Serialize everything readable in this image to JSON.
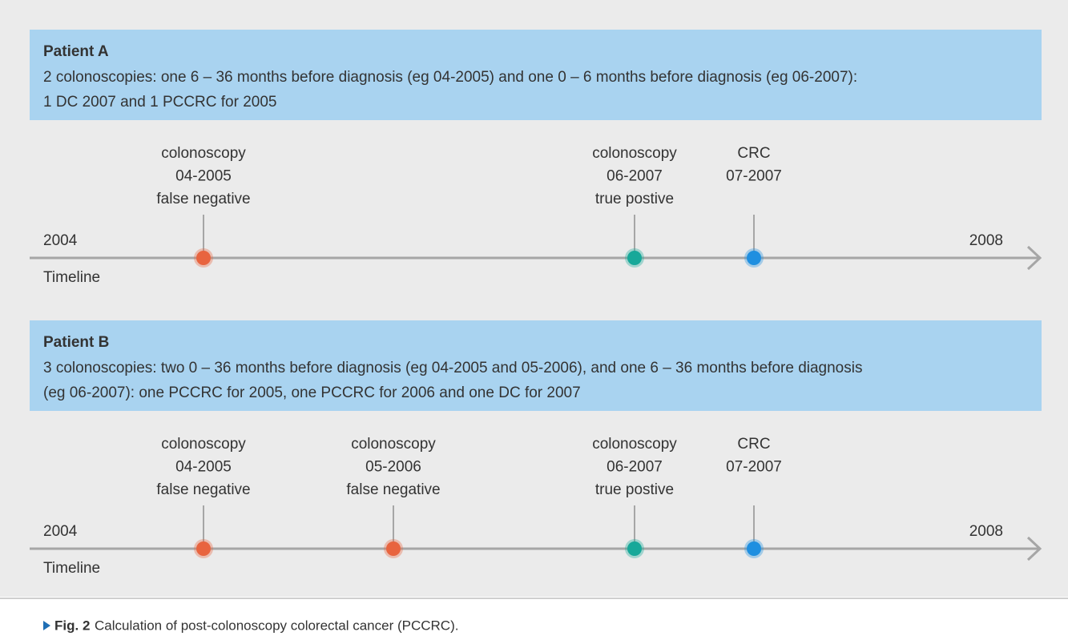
{
  "panels": [
    {
      "title": "Patient A",
      "description": [
        "2 colonoscopies: one 6 – 36 months before diagnosis (eg 04-2005) and one 0 – 6 months before diagnosis (eg 06-2007):",
        "1 DC 2007 and 1 PCCRC for 2005"
      ],
      "timeline": {
        "start": "2004",
        "end": "2008",
        "label": "Timeline",
        "events": [
          {
            "lines": [
              "colonoscopy",
              "04-2005",
              "false negative"
            ],
            "color": "#e8643f"
          },
          {
            "lines": [
              "colonoscopy",
              "06-2007",
              "true postive"
            ],
            "color": "#17a899"
          },
          {
            "lines": [
              "CRC",
              "07-2007"
            ],
            "color": "#1f8fe0"
          }
        ]
      }
    },
    {
      "title": "Patient B",
      "description": [
        "3 colonoscopies: two 0 – 36 months before diagnosis (eg 04-2005 and 05-2006), and one 6 – 36 months before diagnosis",
        "(eg 06-2007): one PCCRC for 2005, one PCCRC for 2006 and one DC for 2007"
      ],
      "timeline": {
        "start": "2004",
        "end": "2008",
        "label": "Timeline",
        "events": [
          {
            "lines": [
              "colonoscopy",
              "04-2005",
              "false negative"
            ],
            "color": "#e8643f"
          },
          {
            "lines": [
              "colonoscopy",
              "05-2006",
              "false negative"
            ],
            "color": "#e8643f"
          },
          {
            "lines": [
              "colonoscopy",
              "06-2007",
              "true postive"
            ],
            "color": "#17a899"
          },
          {
            "lines": [
              "CRC",
              "07-2007"
            ],
            "color": "#1f8fe0"
          }
        ]
      }
    }
  ],
  "caption": {
    "label": "Fig. 2",
    "text": "Calculation of post-colonoscopy colorectal cancer (PCCRC)."
  }
}
